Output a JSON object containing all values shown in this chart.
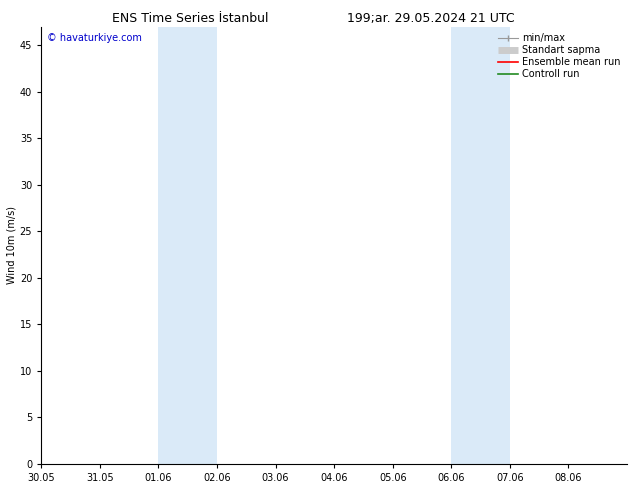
{
  "title_left": "ENS Time Series İstanbul",
  "title_right": "199;ar. 29.05.2024 21 UTC",
  "ylabel": "Wind 10m (m/s)",
  "watermark": "© havaturkiye.com",
  "xlim_left": 0,
  "xlim_right": 10,
  "ylim_bottom": 0,
  "ylim_top": 47,
  "yticks": [
    0,
    5,
    10,
    15,
    20,
    25,
    30,
    35,
    40,
    45
  ],
  "xtick_labels": [
    "30.05",
    "31.05",
    "01.06",
    "02.06",
    "03.06",
    "04.06",
    "05.06",
    "06.06",
    "07.06",
    "08.06"
  ],
  "bg_color": "#ffffff",
  "plot_bg_color": "#ffffff",
  "shaded_regions": [
    {
      "x_start": 2.0,
      "x_end": 2.5,
      "color": "#daeaf8"
    },
    {
      "x_start": 2.5,
      "x_end": 3.0,
      "color": "#daeaf8"
    },
    {
      "x_start": 7.0,
      "x_end": 7.5,
      "color": "#daeaf8"
    },
    {
      "x_start": 7.5,
      "x_end": 8.0,
      "color": "#daeaf8"
    }
  ],
  "watermark_color": "#0000cc",
  "title_fontsize": 9,
  "axis_fontsize": 7,
  "ylabel_fontsize": 7,
  "legend_fontsize": 7
}
